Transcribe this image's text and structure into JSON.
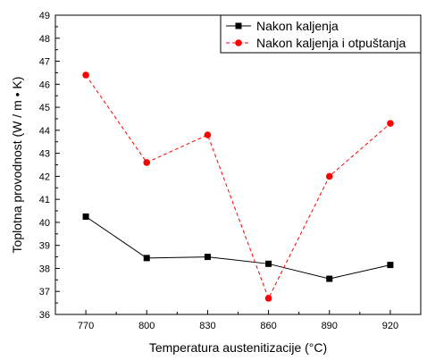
{
  "chart_data": {
    "type": "line",
    "title": "",
    "xlabel": "Temperatura austenitizacije (°C)",
    "ylabel": "Toplotna provodnost (W / m • K)",
    "categories": [
      "770",
      "800",
      "830",
      "860",
      "890",
      "920"
    ],
    "xlim": [
      755,
      935
    ],
    "ylim": [
      36,
      49
    ],
    "y_ticks": [
      "36",
      "37",
      "38",
      "39",
      "40",
      "41",
      "42",
      "43",
      "44",
      "45",
      "46",
      "47",
      "48",
      "49"
    ],
    "grid": false,
    "legend_position": "top-right",
    "series": [
      {
        "name": "Nakon kaljenja",
        "x": [
          770,
          800,
          830,
          860,
          890,
          920
        ],
        "values": [
          40.25,
          38.45,
          38.5,
          38.2,
          37.55,
          38.15
        ],
        "color": "#000000",
        "marker": "square",
        "line_style": "solid"
      },
      {
        "name": "Nakon kaljenja i otpuštanja",
        "x": [
          770,
          800,
          830,
          860,
          890,
          920
        ],
        "values": [
          46.4,
          42.6,
          43.8,
          36.7,
          42.0,
          44.3
        ],
        "color": "#ff0000",
        "marker": "circle",
        "line_style": "dashed"
      }
    ]
  }
}
